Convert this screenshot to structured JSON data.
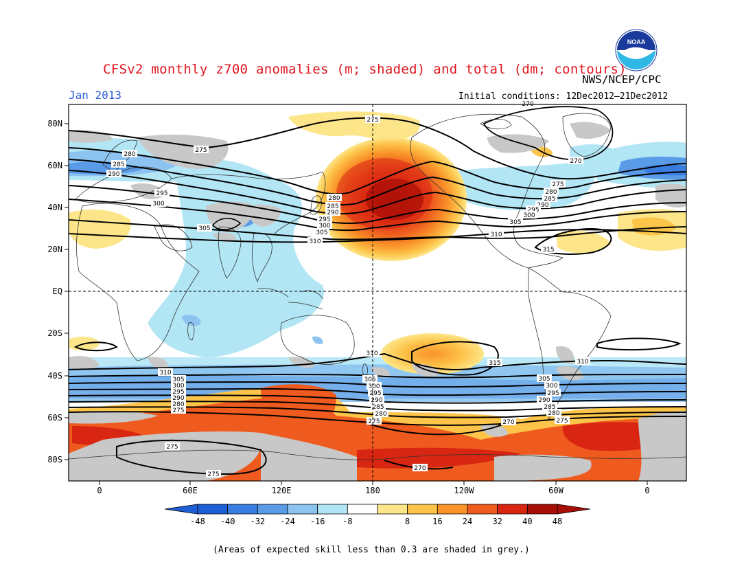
{
  "header": {
    "title": "CFSv2 monthly z700 anomalies (m; shaded) and total (dm; contours)",
    "agency": "NWS/NCEP/CPC",
    "period": "Jan 2013",
    "initial_conditions": "Initial conditions: 12Dec2012–21Dec2012",
    "logo_text": "NOAA"
  },
  "map": {
    "lat_labels": [
      "80N",
      "60N",
      "40N",
      "20N",
      "EQ",
      "20S",
      "40S",
      "60S",
      "80S"
    ],
    "lon_labels": [
      "0",
      "60E",
      "120E",
      "180",
      "120W",
      "60W",
      "0"
    ],
    "contour_labels": [
      "270",
      "275",
      "280",
      "285",
      "290",
      "295",
      "300",
      "305",
      "310",
      "315"
    ],
    "skill_shading": "grey",
    "anomaly_colors": {
      "neg_48": "#1f5fd6",
      "neg_40": "#3a7de0",
      "neg_32": "#5a9be8",
      "neg_24": "#8cc3f0",
      "neg_16": "#b2e6f5",
      "neutral": "#ffffff",
      "pos_8": "#fde68a",
      "pos_16": "#fdc44a",
      "pos_24": "#f9932a",
      "pos_32": "#ef5a1e",
      "pos_40": "#d82612",
      "pos_48": "#a80e06"
    },
    "skill_grey": "#c8c8c8"
  },
  "colorbar": {
    "labels": [
      "-48",
      "-40",
      "-32",
      "-24",
      "-16",
      "-8",
      "8",
      "16",
      "24",
      "32",
      "40",
      "48"
    ],
    "colors": [
      "#1f5fd6",
      "#3a7de0",
      "#5a9be8",
      "#8cc3f0",
      "#b2e6f5",
      "#ffffff",
      "#fde68a",
      "#fdc44a",
      "#f9932a",
      "#ef5a1e",
      "#d82612",
      "#a80e06"
    ]
  },
  "footnote": "(Areas of expected skill less than 0.3 are shaded in grey.)"
}
